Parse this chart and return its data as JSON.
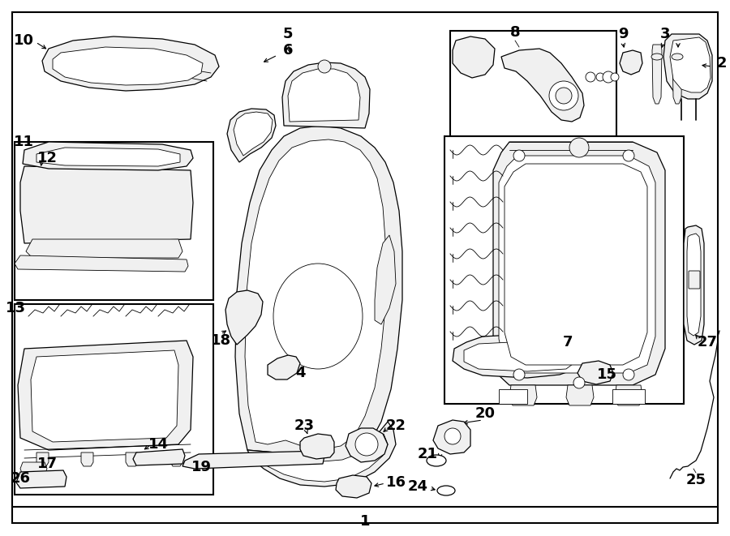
{
  "bg_color": "#ffffff",
  "fig_width": 9.0,
  "fig_height": 6.61,
  "dpi": 100,
  "lw_thin": 0.6,
  "lw_med": 0.9,
  "lw_thick": 1.3,
  "lw_border": 1.5,
  "fc_white": "#ffffff",
  "fc_light": "#f0f0f0",
  "ec_black": "#000000"
}
